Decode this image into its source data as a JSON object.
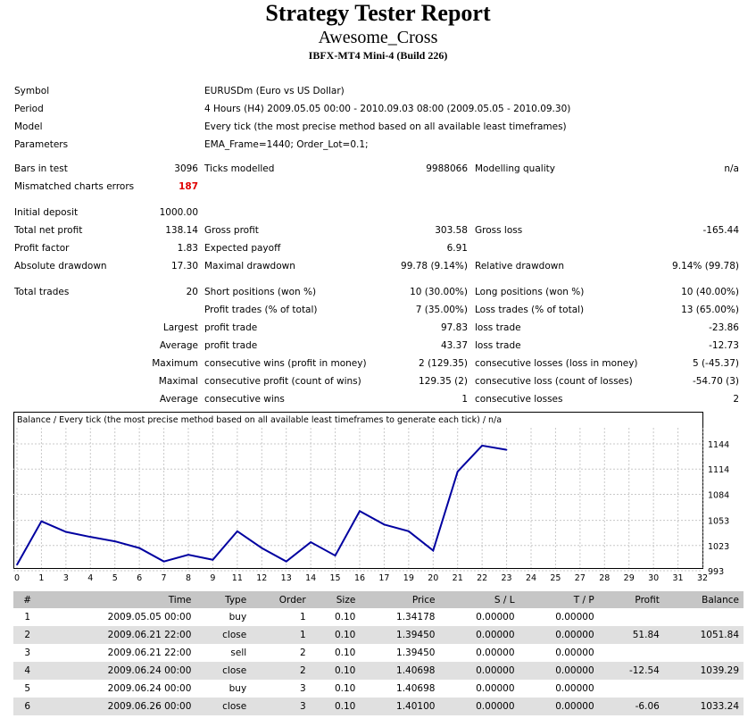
{
  "report": {
    "title": "Strategy Tester Report",
    "subtitle": "Awesome_Cross",
    "build": "IBFX-MT4 Mini-4 (Build 226)"
  },
  "info": [
    {
      "label": "Symbol",
      "value": "EURUSDm (Euro vs US Dollar)"
    },
    {
      "label": "Period",
      "value": "4 Hours (H4) 2009.05.05 00:00 - 2010.09.03 08:00 (2009.05.05 - 2010.09.30)"
    },
    {
      "label": "Model",
      "value": "Every tick (the most precise method based on all available least timeframes)"
    },
    {
      "label": "Parameters",
      "value": "EMA_Frame=1440; Order_Lot=0.1;"
    }
  ],
  "stats": {
    "bars_label": "Bars in test",
    "bars": "3096",
    "ticks_label": "Ticks modelled",
    "ticks": "9988066",
    "quality_label": "Modelling quality",
    "quality": "n/a",
    "mismatch_label": "Mismatched charts errors",
    "mismatch": "187",
    "deposit_label": "Initial deposit",
    "deposit": "1000.00",
    "netprofit_label": "Total net profit",
    "netprofit": "138.14",
    "grossprofit_label": "Gross profit",
    "grossprofit": "303.58",
    "grossloss_label": "Gross loss",
    "grossloss": "-165.44",
    "pf_label": "Profit factor",
    "pf": "1.83",
    "payoff_label": "Expected payoff",
    "payoff": "6.91",
    "absdd_label": "Absolute drawdown",
    "absdd": "17.30",
    "maxdd_label": "Maximal drawdown",
    "maxdd": "99.78 (9.14%)",
    "reldd_label": "Relative drawdown",
    "reldd": "9.14% (99.78)",
    "trades_label": "Total trades",
    "trades": "20",
    "short_label": "Short positions (won %)",
    "short": "10 (30.00%)",
    "long_label": "Long positions (won %)",
    "long": "10 (40.00%)",
    "pt_label": "Profit trades (% of total)",
    "pt": "7 (35.00%)",
    "lt_label": "Loss trades (% of total)",
    "lt": "13 (65.00%)",
    "largest_label": "Largest",
    "largest_pt_label": "profit trade",
    "largest_pt": "97.83",
    "largest_lt_label": "loss trade",
    "largest_lt": "-23.86",
    "average_label": "Average",
    "average_pt_label": "profit trade",
    "average_pt": "43.37",
    "average_lt_label": "loss trade",
    "average_lt": "-12.73",
    "maximum_label": "Maximum",
    "max_cw_label": "consecutive wins (profit in money)",
    "max_cw": "2 (129.35)",
    "max_cl_label": "consecutive losses (loss in money)",
    "max_cl": "5 (-45.37)",
    "maximal_label": "Maximal",
    "mxl_cp_label": "consecutive profit (count of wins)",
    "mxl_cp": "129.35 (2)",
    "mxl_cl_label": "consecutive loss (count of losses)",
    "mxl_cl": "-54.70 (3)",
    "average2_label": "Average",
    "avg_cw_label": "consecutive wins",
    "avg_cw": "1",
    "avg_cl_label": "consecutive losses",
    "avg_cl": "2"
  },
  "chart_data": {
    "type": "line",
    "title": "Balance / Every tick (the most precise method based on all available least timeframes to generate each tick) / n/a",
    "x": [
      0,
      1,
      2,
      3,
      4,
      5,
      6,
      7,
      8,
      9,
      10,
      11,
      12,
      13,
      14,
      15,
      16,
      17,
      18,
      19,
      20,
      21
    ],
    "values": [
      1000,
      1051.84,
      1039.29,
      1033.24,
      1028,
      1020,
      1004,
      1012,
      1006,
      1040,
      1020,
      1004,
      1027,
      1011,
      1064,
      1048,
      1040,
      1017,
      1111,
      1142,
      1137,
      null
    ],
    "xticks": [
      "0",
      "1",
      "3",
      "4",
      "5",
      "6",
      "7",
      "8",
      "9",
      "11",
      "12",
      "13",
      "14",
      "15",
      "16",
      "17",
      "19",
      "20",
      "21",
      "22",
      "23",
      "24",
      "25",
      "27",
      "28",
      "29",
      "30",
      "31",
      "32"
    ],
    "yticks": [
      "1144",
      "1114",
      "1084",
      "1053",
      "1023",
      "993"
    ],
    "ylim": [
      993,
      1160
    ],
    "line_color": "#0000a0",
    "grid": true
  },
  "table": {
    "headers": [
      "#",
      "Time",
      "Type",
      "Order",
      "Size",
      "Price",
      "S / L",
      "T / P",
      "Profit",
      "Balance"
    ],
    "rows": [
      [
        "1",
        "2009.05.05 00:00",
        "buy",
        "1",
        "0.10",
        "1.34178",
        "0.00000",
        "0.00000",
        "",
        ""
      ],
      [
        "2",
        "2009.06.21 22:00",
        "close",
        "1",
        "0.10",
        "1.39450",
        "0.00000",
        "0.00000",
        "51.84",
        "1051.84"
      ],
      [
        "3",
        "2009.06.21 22:00",
        "sell",
        "2",
        "0.10",
        "1.39450",
        "0.00000",
        "0.00000",
        "",
        ""
      ],
      [
        "4",
        "2009.06.24 00:00",
        "close",
        "2",
        "0.10",
        "1.40698",
        "0.00000",
        "0.00000",
        "-12.54",
        "1039.29"
      ],
      [
        "5",
        "2009.06.24 00:00",
        "buy",
        "3",
        "0.10",
        "1.40698",
        "0.00000",
        "0.00000",
        "",
        ""
      ],
      [
        "6",
        "2009.06.26 00:00",
        "close",
        "3",
        "0.10",
        "1.40100",
        "0.00000",
        "0.00000",
        "-6.06",
        "1033.24"
      ]
    ]
  }
}
